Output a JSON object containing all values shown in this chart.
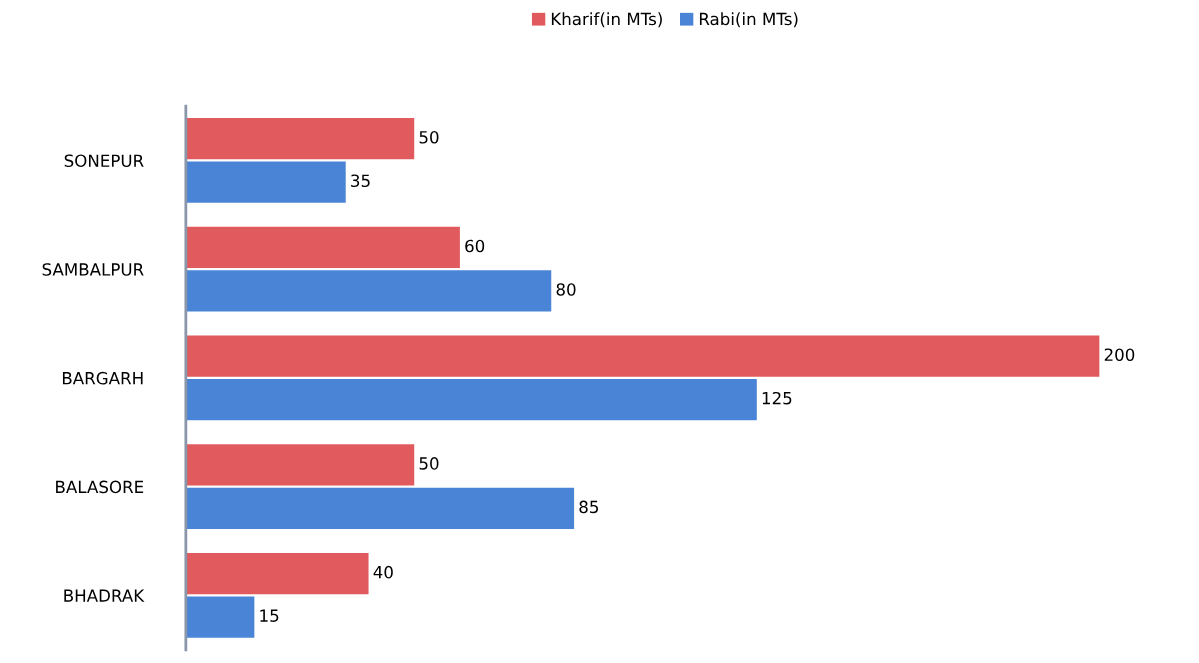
{
  "chart_data": {
    "type": "bar",
    "orientation": "horizontal",
    "categories": [
      "SONEPUR",
      "SAMBALPUR",
      "BARGARH",
      "BALASORE",
      "BHADRAK"
    ],
    "series": [
      {
        "name": "Kharif(in MTs)",
        "color": "#e05a5e",
        "values": [
          50,
          60,
          200,
          50,
          40
        ]
      },
      {
        "name": "Rabi(in MTs)",
        "color": "#4a84d6",
        "values": [
          35,
          80,
          125,
          85,
          15
        ]
      }
    ],
    "data_labels": true,
    "legend": "top",
    "grid": false,
    "tick_labels": "y"
  }
}
